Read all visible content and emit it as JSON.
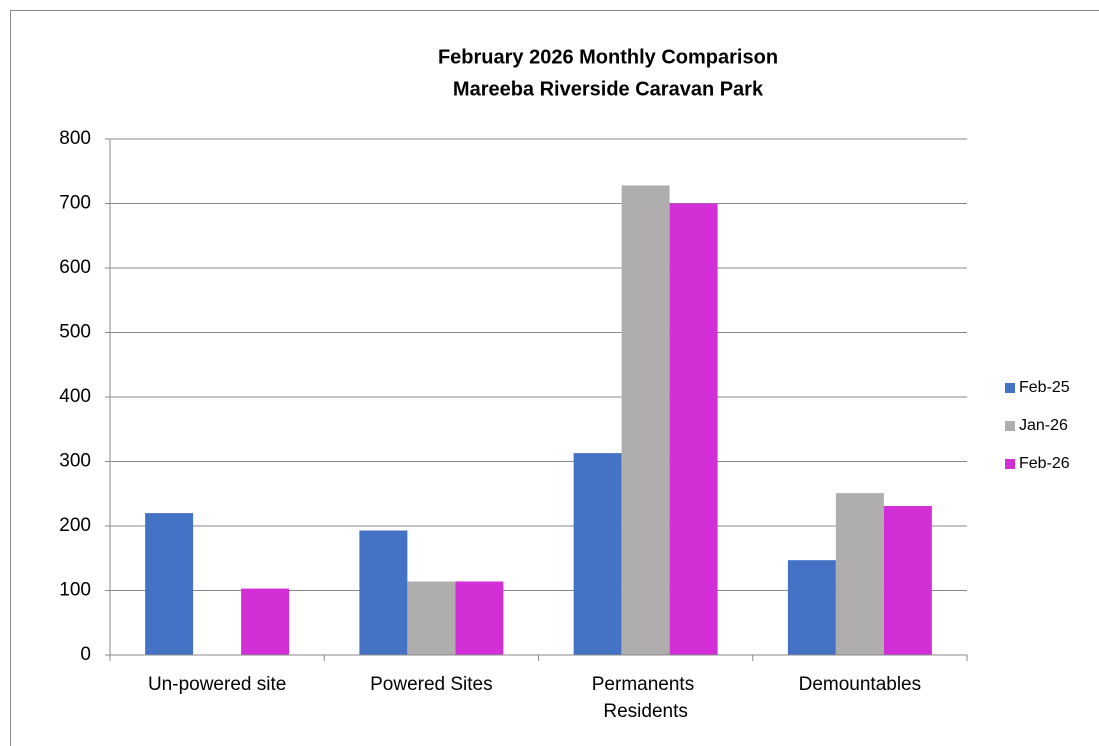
{
  "chart_data": {
    "type": "bar",
    "title": "February 2026 Monthly Comparison",
    "subtitle": "Mareeba Riverside Caravan Park",
    "categories": [
      "Un-powered site",
      "Powered Sites",
      "Permanents Residents",
      "Demountables"
    ],
    "series": [
      {
        "name": "Feb-25",
        "color": "#4472c4",
        "values": [
          220,
          193,
          313,
          147
        ]
      },
      {
        "name": "Jan-26",
        "color": "#b0adad",
        "values": [
          0,
          114,
          728,
          251
        ]
      },
      {
        "name": "Feb-26",
        "color": "#d22fd6",
        "values": [
          103,
          114,
          700,
          231
        ]
      }
    ],
    "ylim": [
      0,
      800
    ],
    "yticks": [
      0,
      100,
      200,
      300,
      400,
      500,
      600,
      700,
      800
    ],
    "grid": true,
    "legend": "right"
  }
}
